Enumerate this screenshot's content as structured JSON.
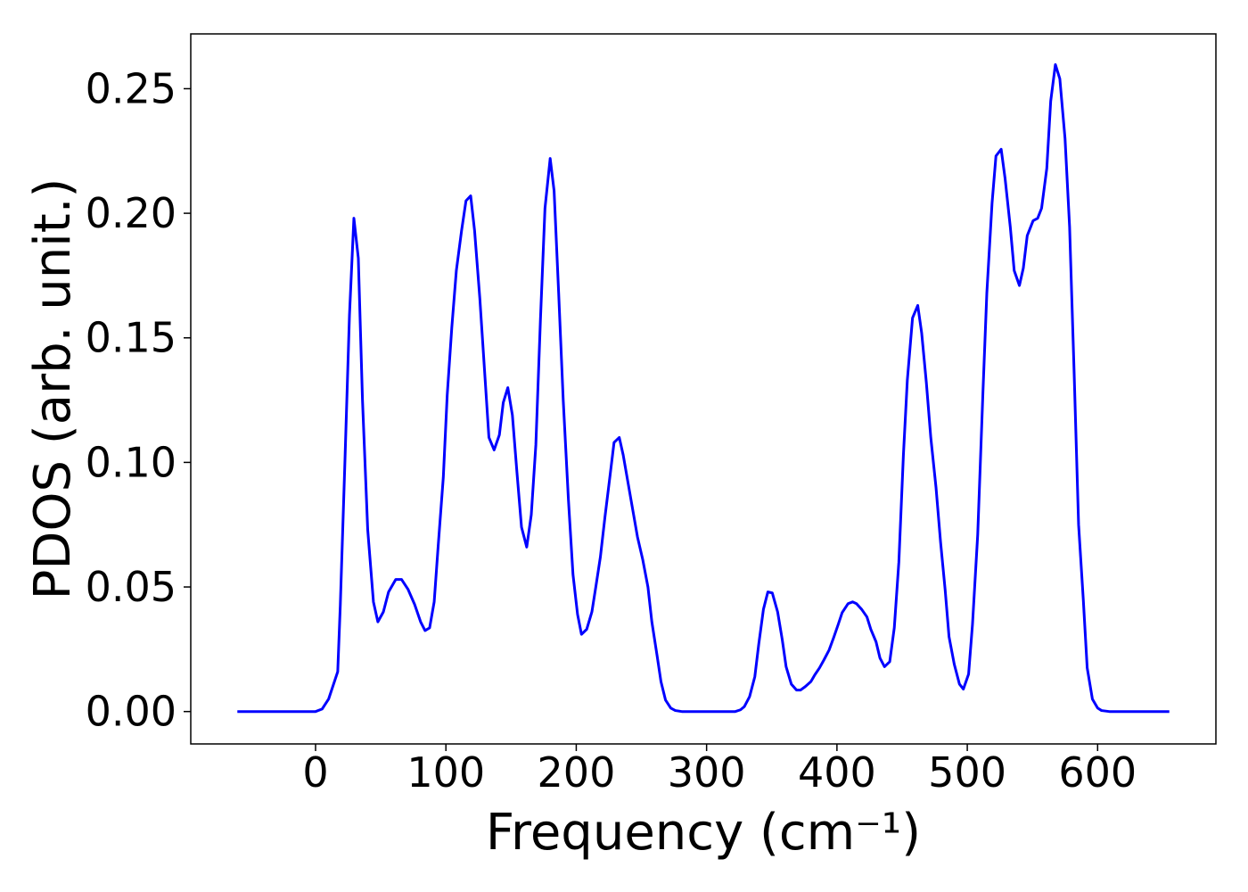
{
  "chart_data": {
    "type": "line",
    "xlabel": "Frequency (cm⁻¹)",
    "ylabel": "PDOS (arb. unit.)",
    "color": "#0000ff",
    "x": [
      -60,
      0,
      5,
      10,
      17,
      19,
      22.5,
      26,
      29.4,
      32.8,
      36,
      40,
      44.4,
      47.8,
      52,
      56,
      61.5,
      66,
      71,
      76,
      80.6,
      84,
      87.5,
      91,
      94,
      98,
      101,
      104.5,
      108,
      112,
      115.4,
      119,
      122,
      126,
      130,
      133,
      137,
      141,
      144,
      147.5,
      151,
      154.5,
      158,
      162,
      165.5,
      169,
      172.5,
      176,
      180,
      183,
      186.5,
      190,
      194,
      197.5,
      201,
      204,
      208,
      212,
      215,
      218.5,
      222,
      226,
      229,
      233,
      236,
      240,
      244,
      247,
      251,
      255,
      258,
      262,
      265,
      268.5,
      272.5,
      276,
      281,
      322,
      326,
      329,
      333,
      337,
      340,
      343.6,
      347,
      350.4,
      354.5,
      358,
      361,
      365,
      369,
      372,
      375.7,
      380,
      383,
      386.6,
      390,
      394,
      397.5,
      401,
      404,
      408.5,
      412,
      415,
      419,
      423,
      426,
      430,
      433,
      436.5,
      440.5,
      444,
      447.5,
      451,
      454,
      458,
      462,
      465,
      468.6,
      472,
      476,
      479.5,
      483,
      486,
      490,
      494,
      497,
      501,
      504,
      508,
      512,
      515,
      519,
      522,
      526,
      529,
      533,
      536,
      540,
      543,
      546,
      550.5,
      554,
      557,
      561,
      564,
      567.6,
      571,
      575,
      578.5,
      582,
      585.4,
      589,
      592,
      596,
      600,
      603,
      609,
      655
    ],
    "values": [
      0,
      0,
      0.001,
      0.005,
      0.016,
      0.043,
      0.1,
      0.159,
      0.198,
      0.182,
      0.125,
      0.073,
      0.044,
      0.036,
      0.04,
      0.048,
      0.053,
      0.053,
      0.049,
      0.043,
      0.036,
      0.0325,
      0.0336,
      0.044,
      0.066,
      0.094,
      0.127,
      0.154,
      0.177,
      0.193,
      0.205,
      0.207,
      0.193,
      0.166,
      0.134,
      0.11,
      0.105,
      0.111,
      0.124,
      0.13,
      0.119,
      0.096,
      0.074,
      0.066,
      0.079,
      0.107,
      0.157,
      0.202,
      0.222,
      0.209,
      0.168,
      0.125,
      0.085,
      0.055,
      0.039,
      0.031,
      0.033,
      0.04,
      0.05,
      0.062,
      0.078,
      0.095,
      0.108,
      0.11,
      0.103,
      0.091,
      0.079,
      0.07,
      0.061,
      0.05,
      0.036,
      0.0225,
      0.012,
      0.0046,
      0.0014,
      0.0004,
      0,
      0,
      0.0007,
      0.002,
      0.006,
      0.014,
      0.027,
      0.041,
      0.048,
      0.0476,
      0.04,
      0.029,
      0.018,
      0.011,
      0.0086,
      0.0086,
      0.01,
      0.012,
      0.0147,
      0.0175,
      0.0207,
      0.0247,
      0.0297,
      0.035,
      0.0397,
      0.0433,
      0.044,
      0.0433,
      0.041,
      0.038,
      0.033,
      0.028,
      0.0215,
      0.018,
      0.02,
      0.0336,
      0.06,
      0.103,
      0.133,
      0.158,
      0.163,
      0.152,
      0.132,
      0.11,
      0.09,
      0.068,
      0.049,
      0.03,
      0.019,
      0.011,
      0.009,
      0.015,
      0.035,
      0.071,
      0.128,
      0.168,
      0.204,
      0.223,
      0.2257,
      0.214,
      0.1945,
      0.177,
      0.171,
      0.178,
      0.191,
      0.197,
      0.198,
      0.202,
      0.218,
      0.245,
      0.2597,
      0.254,
      0.23,
      0.1945,
      0.1356,
      0.075,
      0.045,
      0.0175,
      0.005,
      0.0014,
      0.0004,
      0,
      0
    ],
    "xlim": [
      -95.75,
      690.75
    ],
    "ylim": [
      -0.013,
      0.272
    ],
    "xticks": [
      0,
      100,
      200,
      300,
      400,
      500,
      600
    ],
    "yticks": [
      {
        "value": 0,
        "label": "0.00"
      },
      0.05,
      {
        "value": 0.1,
        "label": "0.10"
      },
      0.15,
      {
        "value": 0.2,
        "label": "0.20"
      },
      0.25
    ]
  }
}
